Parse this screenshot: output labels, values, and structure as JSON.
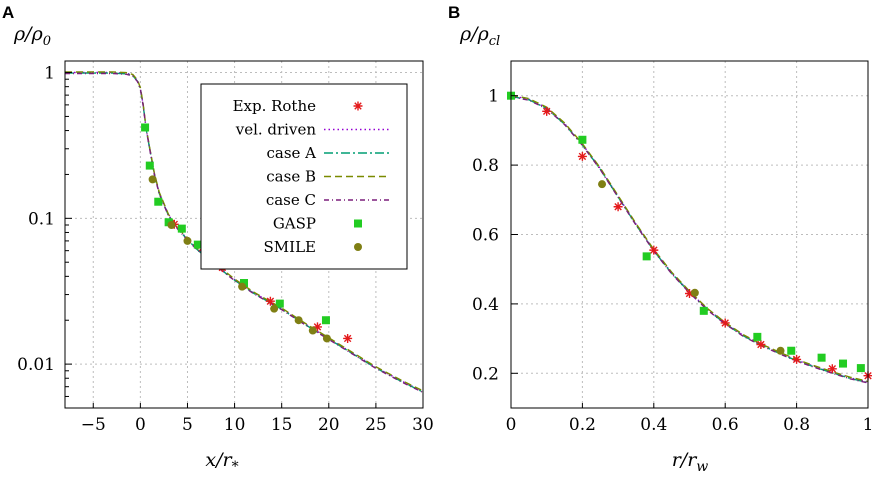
{
  "panels": [
    {
      "letter": "A",
      "ylabel_main": "ρ/ρ",
      "ylabel_sub": "0",
      "xlabel_main": "x/r",
      "xlabel_sub": "*",
      "x_ticks": [
        "−5",
        "0",
        "5",
        "10",
        "15",
        "20",
        "25",
        "30"
      ],
      "y_ticks": [
        "1",
        "0.1",
        "0.01"
      ]
    },
    {
      "letter": "B",
      "ylabel_main": "ρ/ρ",
      "ylabel_sub": "cl",
      "xlabel_main": "r/r",
      "xlabel_sub": "w",
      "x_ticks": [
        "0",
        "0.2",
        "0.4",
        "0.6",
        "0.8",
        "1"
      ],
      "y_ticks": [
        "1",
        "0.8",
        "0.6",
        "0.4",
        "0.2"
      ]
    }
  ],
  "legend": [
    {
      "label": "Exp. Rothe",
      "style": "star",
      "color": "#e41a1c"
    },
    {
      "label": "vel. driven",
      "style": "dotted",
      "color": "#9400d3"
    },
    {
      "label": "case A",
      "style": "dashdot",
      "color": "#009e73"
    },
    {
      "label": "case B",
      "style": "dashed",
      "color": "#7a8a00"
    },
    {
      "label": "case C",
      "style": "dashdot2",
      "color": "#7b1f7b"
    },
    {
      "label": "GASP",
      "style": "square",
      "color": "#22cc22"
    },
    {
      "label": "SMILE",
      "style": "circle",
      "color": "#7f7f14"
    }
  ],
  "chart_data": [
    {
      "type": "line",
      "panel": "A",
      "title": "",
      "xlabel": "x/r*",
      "ylabel": "ρ/ρ0",
      "xlim": [
        -8,
        30
      ],
      "ylim": [
        0.005,
        1.2
      ],
      "yscale": "log",
      "grid": true,
      "legend_position": "top-right",
      "model_curve": {
        "x": [
          -8,
          -3,
          -1.5,
          -0.8,
          -0.3,
          0,
          0.3,
          0.6,
          1,
          1.5,
          2,
          3,
          4,
          5,
          6,
          7,
          8,
          10,
          12,
          15,
          18,
          20,
          22,
          25,
          28,
          30
        ],
        "y": [
          1.0,
          1.0,
          0.99,
          0.96,
          0.88,
          0.78,
          0.6,
          0.42,
          0.3,
          0.2,
          0.15,
          0.105,
          0.085,
          0.072,
          0.062,
          0.054,
          0.048,
          0.038,
          0.031,
          0.024,
          0.018,
          0.015,
          0.0125,
          0.0095,
          0.0075,
          0.0065
        ]
      },
      "series": [
        {
          "name": "Exp. Rothe",
          "x": [
            3.6,
            6.6,
            8.7,
            13.8,
            18.8,
            22.0
          ],
          "y": [
            0.091,
            0.063,
            0.046,
            0.027,
            0.018,
            0.015
          ]
        },
        {
          "name": "GASP",
          "x": [
            0.5,
            1.0,
            1.9,
            3.0,
            4.4,
            6.1,
            8.0,
            11.0,
            14.8,
            19.7
          ],
          "y": [
            0.42,
            0.23,
            0.13,
            0.094,
            0.085,
            0.066,
            0.05,
            0.036,
            0.026,
            0.02
          ]
        },
        {
          "name": "SMILE",
          "x": [
            1.3,
            3.3,
            5.0,
            7.2,
            10.8,
            14.2,
            16.8,
            18.3,
            19.8
          ],
          "y": [
            0.185,
            0.09,
            0.07,
            0.053,
            0.034,
            0.024,
            0.02,
            0.017,
            0.015
          ]
        }
      ]
    },
    {
      "type": "line",
      "panel": "B",
      "title": "",
      "xlabel": "r/rw",
      "ylabel": "ρ/ρcl",
      "xlim": [
        0,
        1
      ],
      "ylim": [
        0.1,
        1.1
      ],
      "grid": true,
      "model_curve": {
        "x": [
          0,
          0.05,
          0.1,
          0.15,
          0.2,
          0.25,
          0.3,
          0.35,
          0.4,
          0.45,
          0.5,
          0.55,
          0.6,
          0.65,
          0.7,
          0.75,
          0.8,
          0.85,
          0.9,
          0.95,
          1.0
        ],
        "y": [
          1.0,
          0.99,
          0.965,
          0.92,
          0.86,
          0.79,
          0.71,
          0.63,
          0.555,
          0.49,
          0.435,
          0.385,
          0.345,
          0.31,
          0.283,
          0.26,
          0.238,
          0.22,
          0.203,
          0.187,
          0.175
        ]
      },
      "series": [
        {
          "name": "Exp. Rothe",
          "x": [
            0.1,
            0.2,
            0.3,
            0.4,
            0.5,
            0.6,
            0.7,
            0.8,
            0.9,
            1.0
          ],
          "y": [
            0.955,
            0.825,
            0.68,
            0.555,
            0.43,
            0.345,
            0.283,
            0.24,
            0.213,
            0.193
          ]
        },
        {
          "name": "GASP",
          "x": [
            0.0,
            0.2,
            0.38,
            0.54,
            0.69,
            0.785,
            0.87,
            0.93,
            0.98
          ],
          "y": [
            1.0,
            0.873,
            0.537,
            0.38,
            0.305,
            0.265,
            0.245,
            0.228,
            0.215
          ]
        },
        {
          "name": "SMILE",
          "x": [
            0.255,
            0.515,
            0.755
          ],
          "y": [
            0.745,
            0.432,
            0.265
          ]
        }
      ]
    }
  ]
}
